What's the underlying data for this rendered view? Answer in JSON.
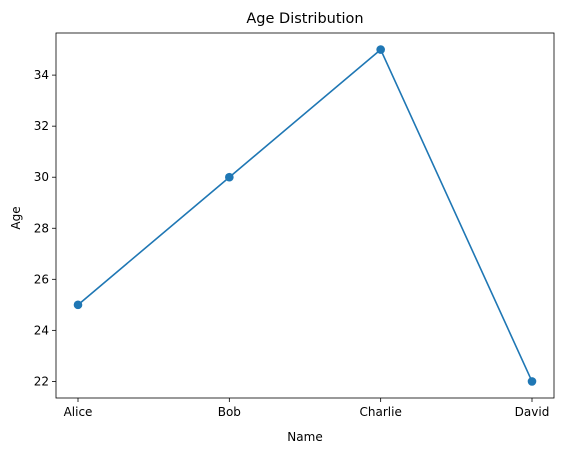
{
  "chart_data": {
    "type": "line",
    "title": "Age Distribution",
    "xlabel": "Name",
    "ylabel": "Age",
    "categories": [
      "Alice",
      "Bob",
      "Charlie",
      "David"
    ],
    "series": [
      {
        "values": [
          25,
          30,
          35,
          22
        ],
        "color": "#1f77b4",
        "marker": "circle"
      }
    ],
    "ylim": [
      21.35,
      35.65
    ],
    "yticks": [
      22,
      24,
      26,
      28,
      30,
      32,
      34
    ],
    "grid": false,
    "legend": "none"
  }
}
